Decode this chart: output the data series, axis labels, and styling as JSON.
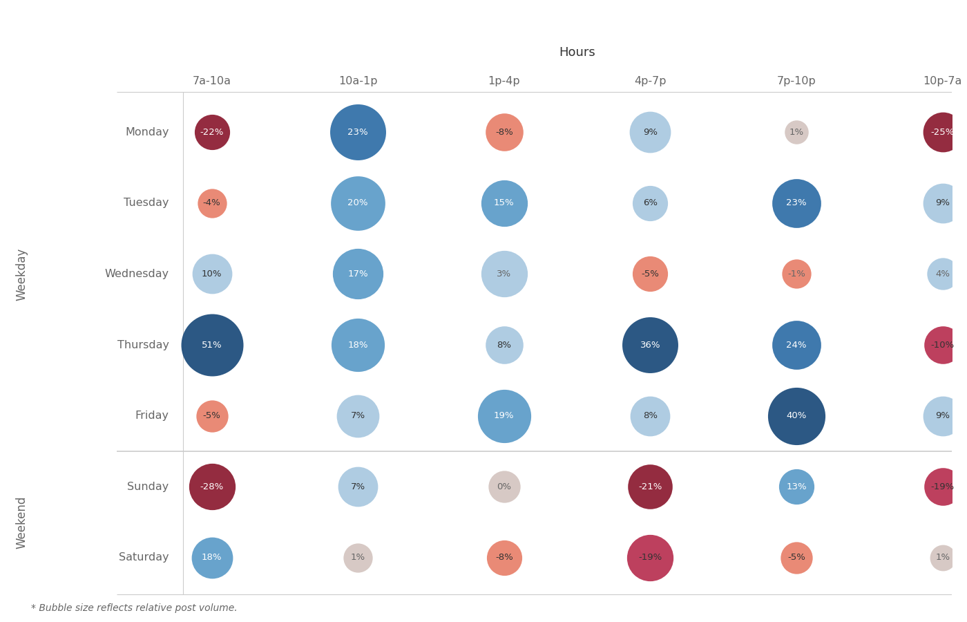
{
  "title": "Hours",
  "columns": [
    "7a-10a",
    "10a-1p",
    "1p-4p",
    "4p-7p",
    "7p-10p",
    "10p-7a"
  ],
  "weekday_label": "Weekday",
  "weekend_label": "Weekend",
  "rows": [
    {
      "day": "Monday",
      "group": "weekday",
      "values": [
        -22,
        23,
        -8,
        9,
        1,
        -25
      ]
    },
    {
      "day": "Tuesday",
      "group": "weekday",
      "values": [
        -4,
        20,
        15,
        6,
        23,
        9
      ]
    },
    {
      "day": "Wednesday",
      "group": "weekday",
      "values": [
        10,
        17,
        3,
        -5,
        -1,
        4
      ]
    },
    {
      "day": "Thursday",
      "group": "weekday",
      "values": [
        51,
        18,
        8,
        36,
        24,
        -10
      ]
    },
    {
      "day": "Friday",
      "group": "weekday",
      "values": [
        -5,
        7,
        19,
        8,
        40,
        9
      ]
    },
    {
      "day": "Sunday",
      "group": "weekend",
      "values": [
        -28,
        7,
        0,
        -21,
        13,
        -19
      ]
    },
    {
      "day": "Saturday",
      "group": "weekend",
      "values": [
        18,
        1,
        -8,
        -19,
        -5,
        1
      ]
    }
  ],
  "bubble_sizes": [
    [
      22,
      55,
      25,
      30,
      10,
      28
    ],
    [
      15,
      52,
      38,
      22,
      42,
      28
    ],
    [
      28,
      45,
      38,
      22,
      15,
      18
    ],
    [
      68,
      50,
      25,
      55,
      42,
      25
    ],
    [
      18,
      32,
      50,
      28,
      58,
      28
    ],
    [
      38,
      28,
      18,
      35,
      22,
      25
    ],
    [
      30,
      15,
      22,
      38,
      18,
      12
    ]
  ],
  "note": "* Bubble size reflects relative post volume.",
  "bg_color": "#ffffff",
  "grid_color": "#cccccc",
  "title_color": "#333333",
  "label_color": "#666666"
}
